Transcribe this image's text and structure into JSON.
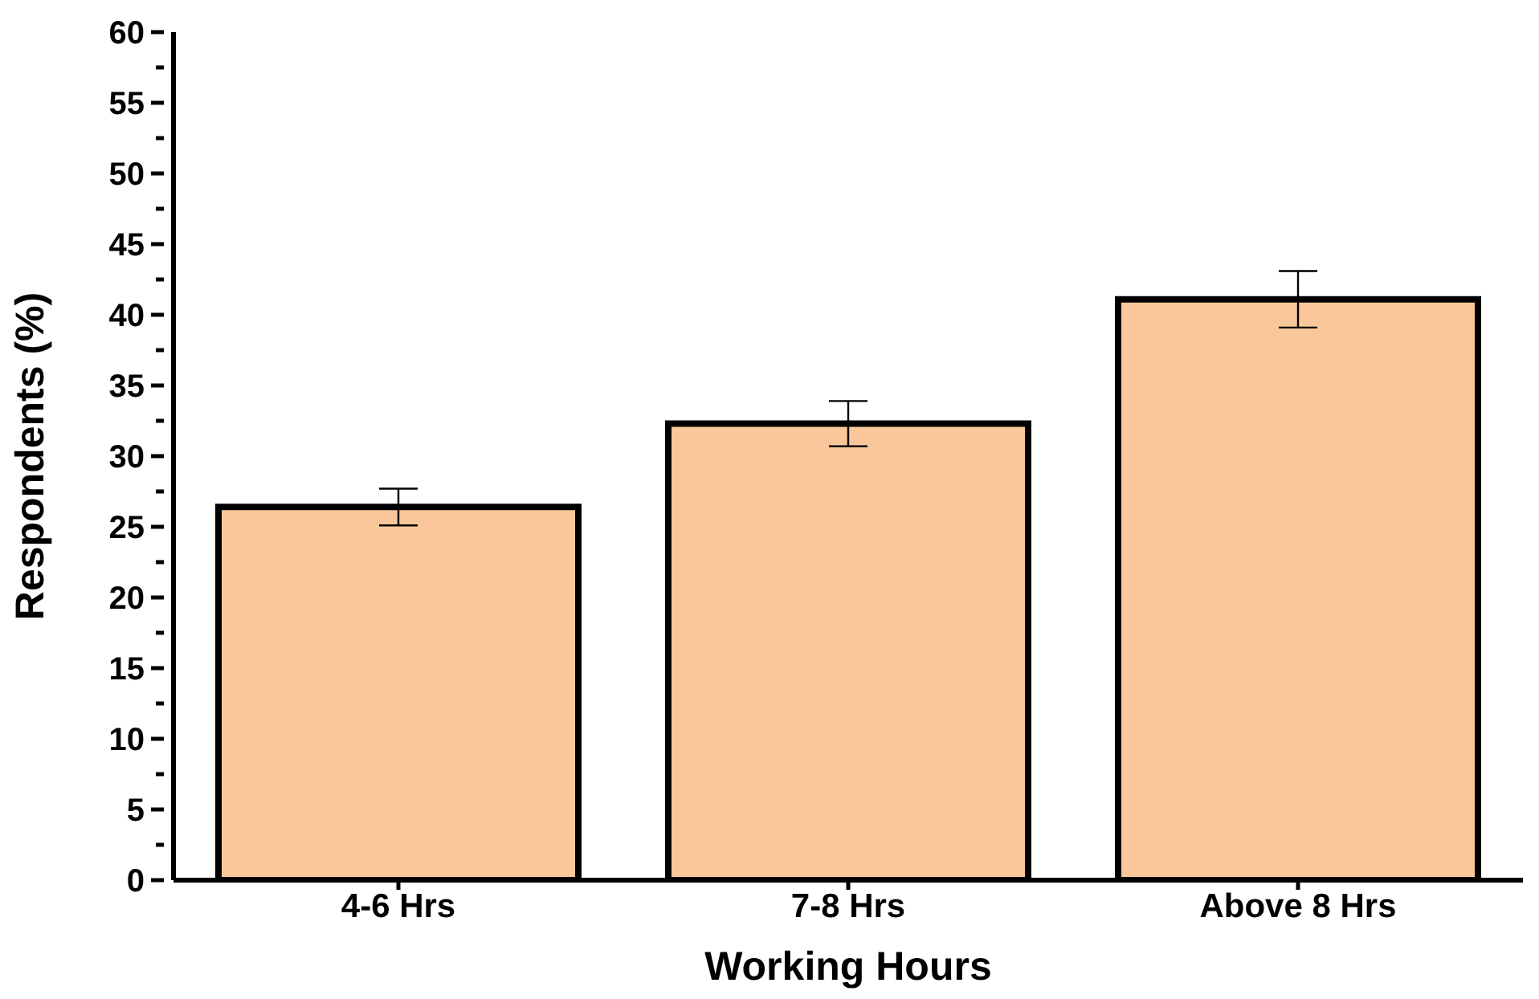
{
  "chart_data": {
    "type": "bar",
    "xlabel": "Working Hours",
    "ylabel": "Respondents (%)",
    "categories": [
      "4-6 Hrs",
      "7-8 Hrs",
      "Above 8 Hrs"
    ],
    "values": [
      26.4,
      32.3,
      41.1
    ],
    "errors": [
      1.3,
      1.6,
      2.0
    ],
    "color": "#f9c799",
    "ylim": [
      0,
      60
    ],
    "yticks": [
      0,
      {
        "value": 2.5,
        "label": null
      },
      5,
      {
        "value": 7.5,
        "label": null
      },
      10,
      {
        "value": 12.5,
        "label": null
      },
      15,
      {
        "value": 17.5,
        "label": null
      },
      20,
      {
        "value": 22.5,
        "label": null
      },
      25,
      {
        "value": 27.5,
        "label": null
      },
      30,
      {
        "value": 32.5,
        "label": null
      },
      35,
      {
        "value": 37.5,
        "label": null
      },
      40,
      {
        "value": 42.5,
        "label": null
      },
      45,
      {
        "value": 47.5,
        "label": null
      },
      50,
      {
        "value": 52.5,
        "label": null
      },
      55,
      {
        "value": 57.5,
        "label": null
      },
      60
    ],
    "grid": false,
    "legend": false
  }
}
